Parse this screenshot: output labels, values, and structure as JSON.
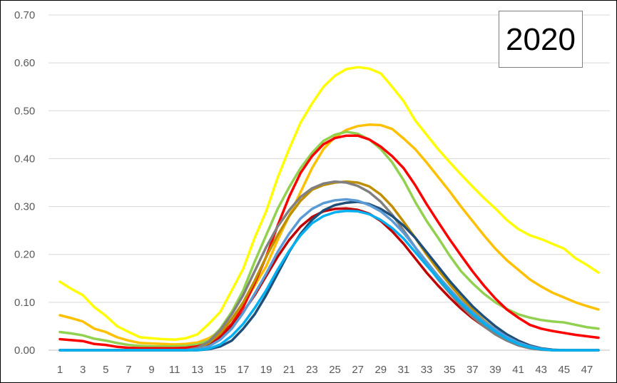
{
  "chart_data": {
    "type": "line",
    "title": "",
    "xlabel": "",
    "ylabel": "",
    "ylim": [
      0,
      0.7
    ],
    "yticks": [
      "0.00",
      "0.10",
      "0.20",
      "0.30",
      "0.40",
      "0.50",
      "0.60",
      "0.70"
    ],
    "xticks": [
      "1",
      "3",
      "5",
      "7",
      "9",
      "11",
      "13",
      "15",
      "17",
      "19",
      "21",
      "23",
      "25",
      "27",
      "29",
      "31",
      "33",
      "35",
      "37",
      "39",
      "41",
      "43",
      "45",
      "47"
    ],
    "x_range": [
      1,
      48
    ],
    "grid": "horizontal",
    "legend": "none",
    "annotation": "2020",
    "series": [
      {
        "color": "#ffff00",
        "values": [
          0.143,
          0.128,
          0.115,
          0.09,
          0.072,
          0.05,
          0.038,
          0.027,
          0.025,
          0.023,
          0.022,
          0.025,
          0.033,
          0.055,
          0.08,
          0.125,
          0.17,
          0.235,
          0.29,
          0.36,
          0.42,
          0.475,
          0.515,
          0.55,
          0.573,
          0.587,
          0.591,
          0.588,
          0.578,
          0.55,
          0.52,
          0.48,
          0.45,
          0.42,
          0.393,
          0.367,
          0.342,
          0.318,
          0.296,
          0.272,
          0.253,
          0.24,
          0.232,
          0.222,
          0.212,
          0.192,
          0.178,
          0.162
        ]
      },
      {
        "color": "#ffc000",
        "values": [
          0.073,
          0.067,
          0.06,
          0.045,
          0.038,
          0.027,
          0.02,
          0.015,
          0.014,
          0.013,
          0.012,
          0.013,
          0.016,
          0.025,
          0.04,
          0.065,
          0.095,
          0.135,
          0.175,
          0.23,
          0.28,
          0.33,
          0.38,
          0.42,
          0.445,
          0.46,
          0.468,
          0.471,
          0.47,
          0.462,
          0.442,
          0.42,
          0.392,
          0.362,
          0.332,
          0.3,
          0.27,
          0.24,
          0.212,
          0.188,
          0.168,
          0.148,
          0.133,
          0.12,
          0.11,
          0.1,
          0.092,
          0.085
        ]
      },
      {
        "color": "#92d050",
        "values": [
          0.038,
          0.035,
          0.031,
          0.024,
          0.02,
          0.015,
          0.011,
          0.009,
          0.008,
          0.008,
          0.008,
          0.009,
          0.012,
          0.02,
          0.045,
          0.08,
          0.125,
          0.185,
          0.24,
          0.295,
          0.34,
          0.38,
          0.412,
          0.437,
          0.45,
          0.456,
          0.452,
          0.44,
          0.42,
          0.392,
          0.355,
          0.31,
          0.27,
          0.235,
          0.198,
          0.165,
          0.14,
          0.118,
          0.1,
          0.086,
          0.075,
          0.068,
          0.063,
          0.06,
          0.058,
          0.053,
          0.048,
          0.045
        ]
      },
      {
        "color": "#ff0000",
        "values": [
          0.023,
          0.021,
          0.019,
          0.013,
          0.011,
          0.007,
          0.005,
          0.004,
          0.004,
          0.004,
          0.004,
          0.005,
          0.008,
          0.015,
          0.03,
          0.055,
          0.09,
          0.14,
          0.195,
          0.26,
          0.32,
          0.37,
          0.405,
          0.43,
          0.443,
          0.448,
          0.448,
          0.44,
          0.425,
          0.405,
          0.38,
          0.345,
          0.305,
          0.268,
          0.232,
          0.198,
          0.165,
          0.135,
          0.108,
          0.085,
          0.068,
          0.053,
          0.045,
          0.04,
          0.036,
          0.032,
          0.029,
          0.026
        ]
      },
      {
        "color": "#c00000",
        "values": [
          0,
          0,
          0,
          0,
          0,
          0,
          0,
          0,
          0,
          0,
          0,
          0,
          0.002,
          0.01,
          0.025,
          0.05,
          0.08,
          0.115,
          0.155,
          0.195,
          0.23,
          0.258,
          0.278,
          0.29,
          0.295,
          0.296,
          0.293,
          0.285,
          0.27,
          0.248,
          0.222,
          0.192,
          0.162,
          0.135,
          0.11,
          0.087,
          0.067,
          0.05,
          0.035,
          0.022,
          0.012,
          0.005,
          0.002,
          0,
          0,
          0,
          0,
          0
        ]
      },
      {
        "color": "#bf8f00",
        "values": [
          0,
          0,
          0,
          0,
          0,
          0,
          0,
          0,
          0,
          0,
          0,
          0,
          0.004,
          0.015,
          0.035,
          0.065,
          0.1,
          0.145,
          0.195,
          0.24,
          0.28,
          0.312,
          0.335,
          0.345,
          0.35,
          0.352,
          0.35,
          0.342,
          0.325,
          0.3,
          0.268,
          0.235,
          0.2,
          0.168,
          0.138,
          0.11,
          0.085,
          0.062,
          0.043,
          0.027,
          0.015,
          0.007,
          0.002,
          0,
          0,
          0,
          0,
          0
        ]
      },
      {
        "color": "#808080",
        "values": [
          0,
          0,
          0,
          0,
          0,
          0,
          0,
          0,
          0,
          0,
          0,
          0,
          0.005,
          0.018,
          0.042,
          0.075,
          0.115,
          0.165,
          0.215,
          0.258,
          0.292,
          0.32,
          0.338,
          0.348,
          0.352,
          0.35,
          0.343,
          0.33,
          0.31,
          0.283,
          0.25,
          0.215,
          0.18,
          0.148,
          0.12,
          0.093,
          0.07,
          0.05,
          0.033,
          0.02,
          0.01,
          0.004,
          0.001,
          0,
          0,
          0,
          0,
          0
        ]
      },
      {
        "color": "#1f4e79",
        "values": [
          0,
          0,
          0,
          0,
          0,
          0,
          0,
          0,
          0,
          0,
          0,
          0,
          0,
          0.002,
          0.008,
          0.02,
          0.045,
          0.075,
          0.115,
          0.16,
          0.205,
          0.243,
          0.272,
          0.292,
          0.303,
          0.308,
          0.31,
          0.305,
          0.295,
          0.28,
          0.26,
          0.235,
          0.205,
          0.175,
          0.145,
          0.118,
          0.092,
          0.07,
          0.05,
          0.033,
          0.02,
          0.01,
          0.004,
          0.001,
          0,
          0,
          0,
          0
        ]
      },
      {
        "color": "#5b9bd5",
        "values": [
          0,
          0,
          0,
          0,
          0,
          0,
          0,
          0,
          0,
          0,
          0,
          0,
          0.002,
          0.008,
          0.022,
          0.045,
          0.078,
          0.118,
          0.16,
          0.205,
          0.243,
          0.275,
          0.295,
          0.307,
          0.313,
          0.315,
          0.312,
          0.303,
          0.29,
          0.27,
          0.245,
          0.215,
          0.185,
          0.155,
          0.128,
          0.102,
          0.08,
          0.06,
          0.043,
          0.028,
          0.016,
          0.008,
          0.003,
          0,
          0,
          0,
          0,
          0
        ]
      },
      {
        "color": "#00b0f0",
        "values": [
          0,
          0,
          0,
          0,
          0,
          0,
          0,
          0,
          0,
          0,
          0,
          0,
          0,
          0.003,
          0.012,
          0.03,
          0.055,
          0.088,
          0.125,
          0.168,
          0.207,
          0.24,
          0.265,
          0.28,
          0.288,
          0.291,
          0.29,
          0.284,
          0.272,
          0.255,
          0.233,
          0.205,
          0.177,
          0.15,
          0.123,
          0.098,
          0.076,
          0.056,
          0.039,
          0.024,
          0.013,
          0.006,
          0.002,
          0,
          0,
          0,
          0,
          0
        ]
      }
    ]
  }
}
